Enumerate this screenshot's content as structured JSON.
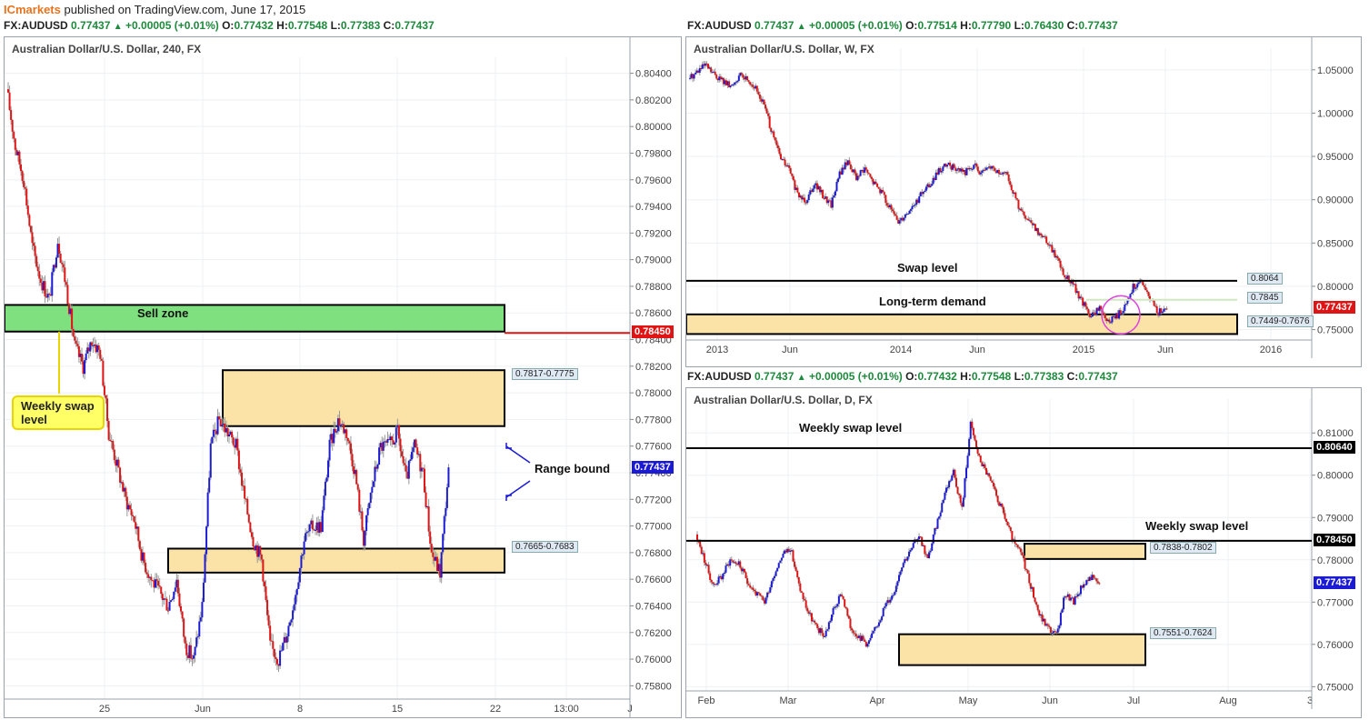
{
  "header": {
    "brand": "ICmarkets",
    "published": " published on TradingView.com, June 17, 2015"
  },
  "colors": {
    "bull": "#1b1bd6",
    "bear": "#e01414",
    "zone_fill": "#fbe3a8",
    "sell_zone_fill": "#7fe07f",
    "price_badge_red": "#e01414",
    "price_badge_blue": "#1b1bd6",
    "price_badge_black": "#000000",
    "arrow_blue": "#1b1bd6",
    "callout_yellow": "#ffff66"
  },
  "quotes": {
    "left": {
      "symbol": "FX:AUDUSD",
      "last": "0.77437",
      "change": "+0.00005 (+0.01%)",
      "o": "0.77432",
      "h": "0.77548",
      "l": "0.77383",
      "c": "0.77437"
    },
    "weekly": {
      "symbol": "FX:AUDUSD",
      "last": "0.77437",
      "change": "+0.00005 (+0.01%)",
      "o": "0.77514",
      "h": "0.77790",
      "l": "0.76430",
      "c": "0.77437"
    },
    "daily": {
      "symbol": "FX:AUDUSD",
      "last": "0.77437",
      "change": "+0.00005 (+0.01%)",
      "o": "0.77432",
      "h": "0.77548",
      "l": "0.77383",
      "c": "0.77437"
    }
  },
  "labels": {
    "o": "O:",
    "h": "H:",
    "l": "L:",
    "c": "C:"
  },
  "chart_data": [
    {
      "type": "candlestick",
      "title": "Australian Dollar/U.S. Dollar, 240, FX",
      "ylim": [
        0.757,
        0.8052
      ],
      "y_ticks": [
        "0.80400",
        "0.80200",
        "0.80000",
        "0.79800",
        "0.79600",
        "0.79400",
        "0.79200",
        "0.79000",
        "0.78800",
        "0.78600",
        "0.78400",
        "0.78200",
        "0.78000",
        "0.77800",
        "0.77600",
        "0.77400",
        "0.77200",
        "0.77000",
        "0.76800",
        "0.76600",
        "0.76400",
        "0.76200",
        "0.76000",
        "0.75800"
      ],
      "x_ticks": [
        "25",
        "Jun",
        "8",
        "15",
        "22",
        "13:00",
        "J"
      ],
      "last_price": "0.77437",
      "levels": [
        {
          "price": "0.78450",
          "color": "#e01414"
        }
      ],
      "zones": [
        {
          "label": "0.7817-0.7775",
          "top": 0.7817,
          "bottom": 0.7775
        },
        {
          "label": "0.7665-0.7683",
          "top": 0.7683,
          "bottom": 0.7665
        }
      ],
      "sell_zone": {
        "label": "Sell zone",
        "top": 0.7866,
        "bottom": 0.7846
      },
      "annotations": {
        "weekly_swap": "Weekly swap level",
        "range": "Range bound"
      },
      "path": [
        0.8028,
        0.7985,
        0.796,
        0.791,
        0.7885,
        0.787,
        0.7915,
        0.788,
        0.7835,
        0.782,
        0.784,
        0.783,
        0.777,
        0.7745,
        0.772,
        0.7705,
        0.7675,
        0.766,
        0.765,
        0.764,
        0.766,
        0.761,
        0.76,
        0.764,
        0.776,
        0.778,
        0.777,
        0.776,
        0.772,
        0.769,
        0.7675,
        0.761,
        0.76,
        0.762,
        0.765,
        0.769,
        0.77,
        0.77,
        0.776,
        0.778,
        0.777,
        0.774,
        0.769,
        0.773,
        0.776,
        0.776,
        0.777,
        0.7735,
        0.776,
        0.774,
        0.768,
        0.7665,
        0.7744
      ]
    },
    {
      "type": "candlestick",
      "title": "Australian Dollar/U.S. Dollar, W, FX",
      "ylim": [
        0.738,
        1.075
      ],
      "y_ticks": [
        "1.05000",
        "1.00000",
        "0.95000",
        "0.90000",
        "0.85000",
        "0.80000",
        "0.75000"
      ],
      "x_ticks": [
        "2013",
        "Jun",
        "2014",
        "Jun",
        "2015",
        "Jun",
        "2016"
      ],
      "last_price": "0.77437",
      "levels": [
        {
          "price": "0.8064",
          "label": "Swap level"
        },
        {
          "price": "0.7845"
        }
      ],
      "zones": [
        {
          "label": "0.7449-0.7676",
          "top": 0.7676,
          "bottom": 0.7449,
          "name": "Long-term demand"
        }
      ],
      "path": [
        1.04,
        1.048,
        1.055,
        1.045,
        1.038,
        1.03,
        1.043,
        1.04,
        1.028,
        1.01,
        0.975,
        0.948,
        0.935,
        0.905,
        0.9,
        0.92,
        0.905,
        0.895,
        0.93,
        0.945,
        0.925,
        0.935,
        0.92,
        0.91,
        0.89,
        0.875,
        0.885,
        0.895,
        0.91,
        0.92,
        0.935,
        0.94,
        0.935,
        0.932,
        0.94,
        0.93,
        0.938,
        0.93,
        0.928,
        0.9,
        0.88,
        0.87,
        0.86,
        0.85,
        0.83,
        0.81,
        0.8,
        0.78,
        0.765,
        0.775,
        0.758,
        0.765,
        0.775,
        0.8,
        0.805,
        0.785,
        0.77,
        0.774
      ]
    },
    {
      "type": "candlestick",
      "title": "Australian Dollar/U.S. Dollar, D, FX",
      "ylim": [
        0.749,
        0.818
      ],
      "y_ticks": [
        "0.81000",
        "0.80000",
        "0.79000",
        "0.78000",
        "0.77000",
        "0.76000",
        "0.75000"
      ],
      "x_ticks": [
        "Feb",
        "Mar",
        "Apr",
        "May",
        "Jun",
        "Jul",
        "Aug",
        "3"
      ],
      "last_price": "0.77437",
      "levels": [
        {
          "price": "0.80640",
          "label": "Weekly swap level"
        },
        {
          "price": "0.78450",
          "label": "Weekly swap level"
        }
      ],
      "zones": [
        {
          "label": "0.7838-0.7802",
          "top": 0.7838,
          "bottom": 0.7802
        },
        {
          "label": "0.7551-0.7624",
          "top": 0.7624,
          "bottom": 0.7551
        }
      ],
      "path": [
        0.786,
        0.78,
        0.774,
        0.776,
        0.78,
        0.779,
        0.775,
        0.772,
        0.77,
        0.776,
        0.781,
        0.783,
        0.774,
        0.768,
        0.764,
        0.762,
        0.768,
        0.772,
        0.764,
        0.762,
        0.76,
        0.764,
        0.769,
        0.772,
        0.779,
        0.782,
        0.786,
        0.78,
        0.788,
        0.796,
        0.801,
        0.792,
        0.812,
        0.804,
        0.8,
        0.795,
        0.79,
        0.784,
        0.781,
        0.774,
        0.767,
        0.764,
        0.762,
        0.772,
        0.77,
        0.774,
        0.776,
        0.7744
      ]
    }
  ]
}
